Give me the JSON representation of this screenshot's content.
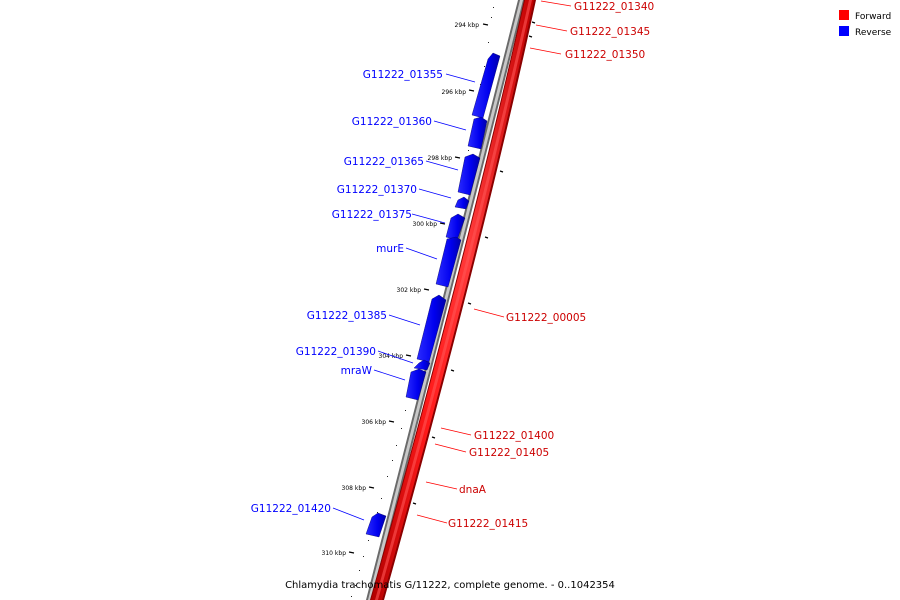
{
  "legend": {
    "forward_label": "Forward",
    "reverse_label": "Reverse",
    "forward_color": "#ff0000",
    "reverse_color": "#0000ff"
  },
  "caption": "Chlamydia trachomatis G/11222, complete genome. - 0..1042354",
  "ticks": [
    "294 kbp",
    "296 kbp",
    "298 kbp",
    "300 kbp",
    "302 kbp",
    "304 kbp",
    "306 kbp",
    "308 kbp",
    "310 kbp"
  ],
  "forward_genes": [
    "G11222_01340",
    "G11222_01345",
    "G11222_01350",
    "G11222_00005",
    "G11222_01400",
    "G11222_01405",
    "dnaA",
    "G11222_01415"
  ],
  "reverse_genes": [
    "G11222_01355",
    "G11222_01360",
    "G11222_01365",
    "G11222_01370",
    "G11222_01375",
    "murE",
    "G11222_01385",
    "G11222_01390",
    "mraW",
    "G11222_01420"
  ]
}
